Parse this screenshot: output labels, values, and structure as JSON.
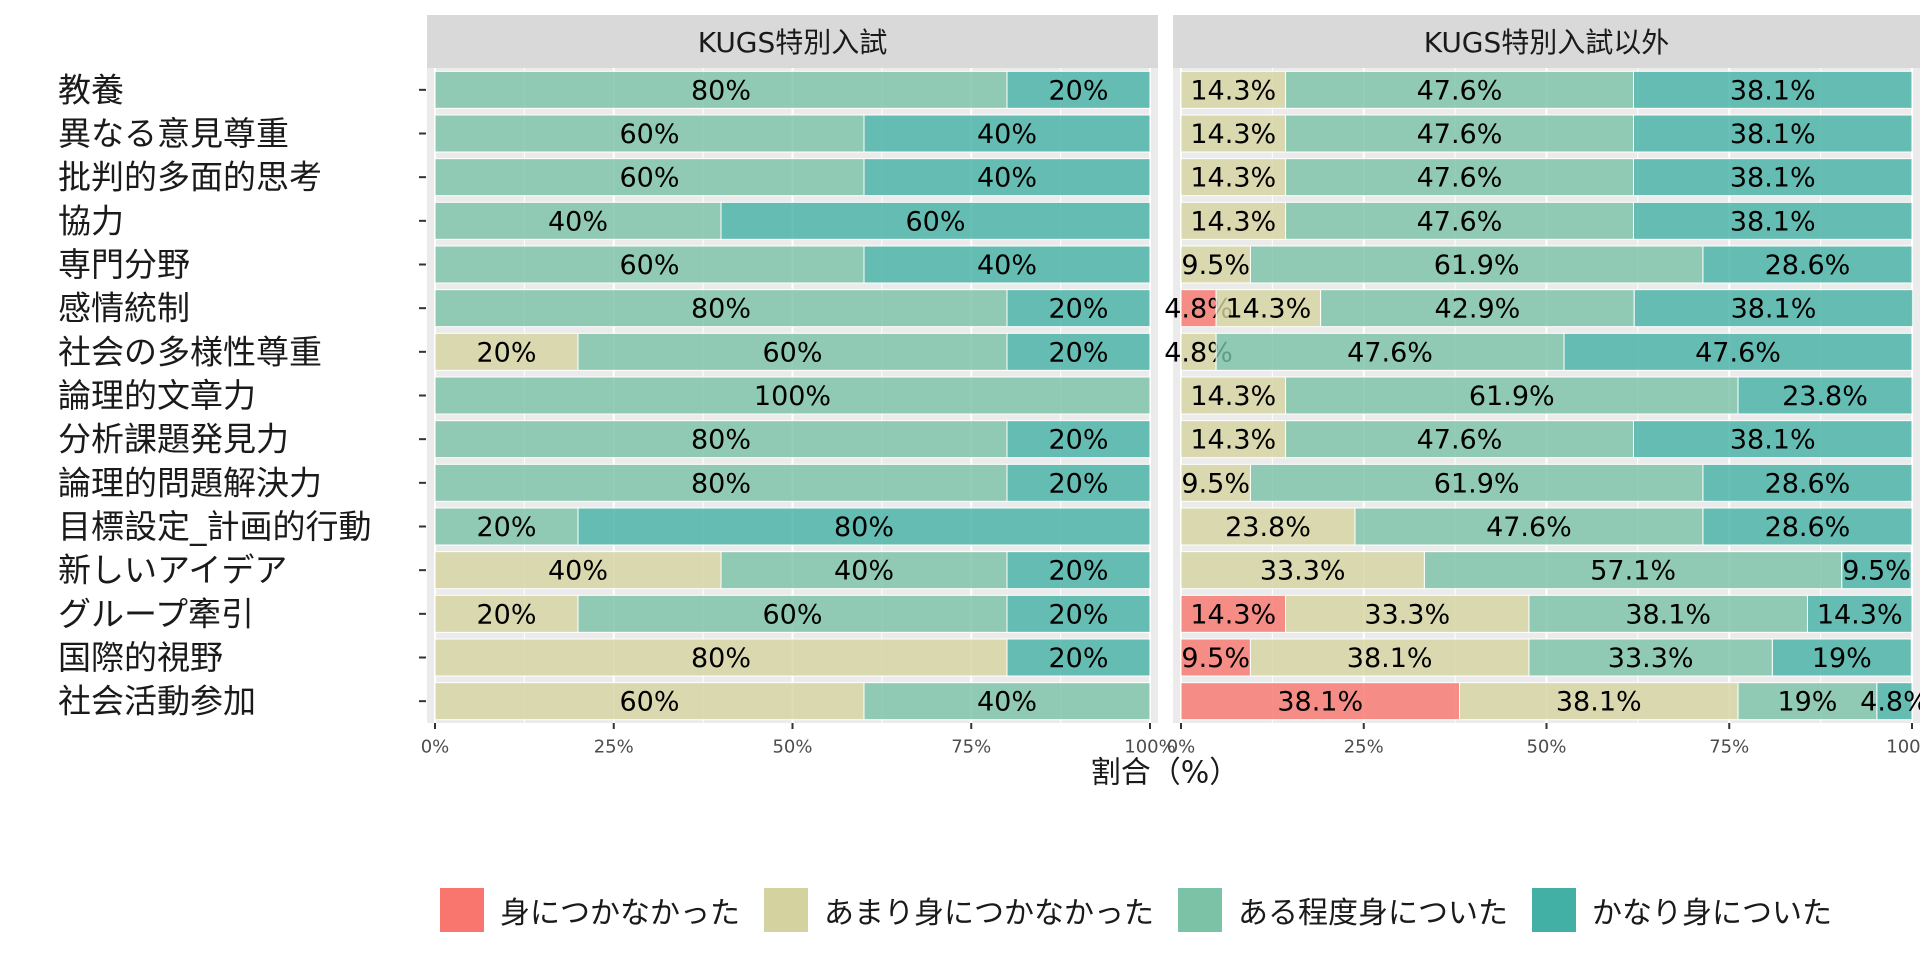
{
  "chart_data": {
    "type": "bar",
    "orientation": "horizontal",
    "stacked": "percent",
    "xlabel": "割合（%）",
    "xlim": [
      0,
      100
    ],
    "x_ticks": [
      "0%",
      "25%",
      "50%",
      "75%",
      "100%"
    ],
    "grid": true,
    "legend_position": "bottom",
    "categories": [
      "教養",
      "異なる意見尊重",
      "批判的多面的思考",
      "協力",
      "専門分野",
      "感情統制",
      "社会の多様性尊重",
      "論理的文章力",
      "分析課題発見力",
      "論理的問題解決力",
      "目標設定_計画的行動",
      "新しいアイデア",
      "グループ牽引",
      "国際的視野",
      "社会活動参加"
    ],
    "legend": [
      {
        "name": "身につかなかった",
        "color": "#F8766D"
      },
      {
        "name": "あまり身につかなかった",
        "color": "#D4D3A0"
      },
      {
        "name": "ある程度身についた",
        "color": "#7BC2A6"
      },
      {
        "name": "かなり身についた",
        "color": "#42B0A4"
      }
    ],
    "panels": [
      {
        "title": "KUGS特別入試",
        "series": [
          {
            "name": "身につかなかった",
            "values": [
              0,
              0,
              0,
              0,
              0,
              0,
              0,
              0,
              0,
              0,
              0,
              0,
              0,
              0,
              0
            ]
          },
          {
            "name": "あまり身につかなかった",
            "values": [
              0,
              0,
              0,
              0,
              0,
              0,
              20,
              0,
              0,
              0,
              0,
              40,
              20,
              80,
              60
            ]
          },
          {
            "name": "ある程度身についた",
            "values": [
              80,
              60,
              60,
              40,
              60,
              80,
              60,
              100,
              80,
              80,
              20,
              40,
              60,
              0,
              40
            ]
          },
          {
            "name": "かなり身についた",
            "values": [
              20,
              40,
              40,
              60,
              40,
              20,
              20,
              0,
              20,
              20,
              80,
              20,
              20,
              20,
              0
            ]
          }
        ],
        "labels": [
          [
            null,
            null,
            "80%",
            "20%"
          ],
          [
            null,
            null,
            "60%",
            "40%"
          ],
          [
            null,
            null,
            "60%",
            "40%"
          ],
          [
            null,
            null,
            "40%",
            "60%"
          ],
          [
            null,
            null,
            "60%",
            "40%"
          ],
          [
            null,
            null,
            "80%",
            "20%"
          ],
          [
            null,
            "20%",
            "60%",
            "20%"
          ],
          [
            null,
            null,
            "100%",
            null
          ],
          [
            null,
            null,
            "80%",
            "20%"
          ],
          [
            null,
            null,
            "80%",
            "20%"
          ],
          [
            null,
            null,
            "20%",
            "80%"
          ],
          [
            null,
            "40%",
            "40%",
            "20%"
          ],
          [
            null,
            "20%",
            "60%",
            "20%"
          ],
          [
            null,
            "80%",
            null,
            "20%"
          ],
          [
            null,
            "60%",
            "40%",
            null
          ]
        ]
      },
      {
        "title": "KUGS特別入試以外",
        "series": [
          {
            "name": "身につかなかった",
            "values": [
              0,
              0,
              0,
              0,
              0,
              4.8,
              0,
              0,
              0,
              0,
              0,
              0,
              14.3,
              9.5,
              38.1
            ]
          },
          {
            "name": "あまり身につかなかった",
            "values": [
              14.3,
              14.3,
              14.3,
              14.3,
              9.5,
              14.3,
              4.8,
              14.3,
              14.3,
              9.5,
              23.8,
              33.3,
              33.3,
              38.1,
              38.1
            ]
          },
          {
            "name": "ある程度身についた",
            "values": [
              47.6,
              47.6,
              47.6,
              47.6,
              61.9,
              42.9,
              47.6,
              61.9,
              47.6,
              61.9,
              47.6,
              57.1,
              38.1,
              33.3,
              19
            ]
          },
          {
            "name": "かなり身についた",
            "values": [
              38.1,
              38.1,
              38.1,
              38.1,
              28.6,
              38.1,
              47.6,
              23.8,
              38.1,
              28.6,
              28.6,
              9.5,
              14.3,
              19,
              4.8
            ]
          }
        ],
        "labels": [
          [
            null,
            "14.3%",
            "47.6%",
            "38.1%"
          ],
          [
            null,
            "14.3%",
            "47.6%",
            "38.1%"
          ],
          [
            null,
            "14.3%",
            "47.6%",
            "38.1%"
          ],
          [
            null,
            "14.3%",
            "47.6%",
            "38.1%"
          ],
          [
            null,
            "9.5%",
            "61.9%",
            "28.6%"
          ],
          [
            "4.8%",
            "14.3%",
            "42.9%",
            "38.1%"
          ],
          [
            null,
            "4.8%",
            "47.6%",
            "47.6%"
          ],
          [
            null,
            "14.3%",
            "61.9%",
            "23.8%"
          ],
          [
            null,
            "14.3%",
            "47.6%",
            "38.1%"
          ],
          [
            null,
            "9.5%",
            "61.9%",
            "28.6%"
          ],
          [
            null,
            "23.8%",
            "47.6%",
            "28.6%"
          ],
          [
            null,
            "33.3%",
            "57.1%",
            "9.5%"
          ],
          [
            "14.3%",
            "33.3%",
            "38.1%",
            "14.3%"
          ],
          [
            "9.5%",
            "38.1%",
            "33.3%",
            "19%"
          ],
          [
            "38.1%",
            "38.1%",
            "19%",
            "4.8%"
          ]
        ]
      }
    ]
  }
}
